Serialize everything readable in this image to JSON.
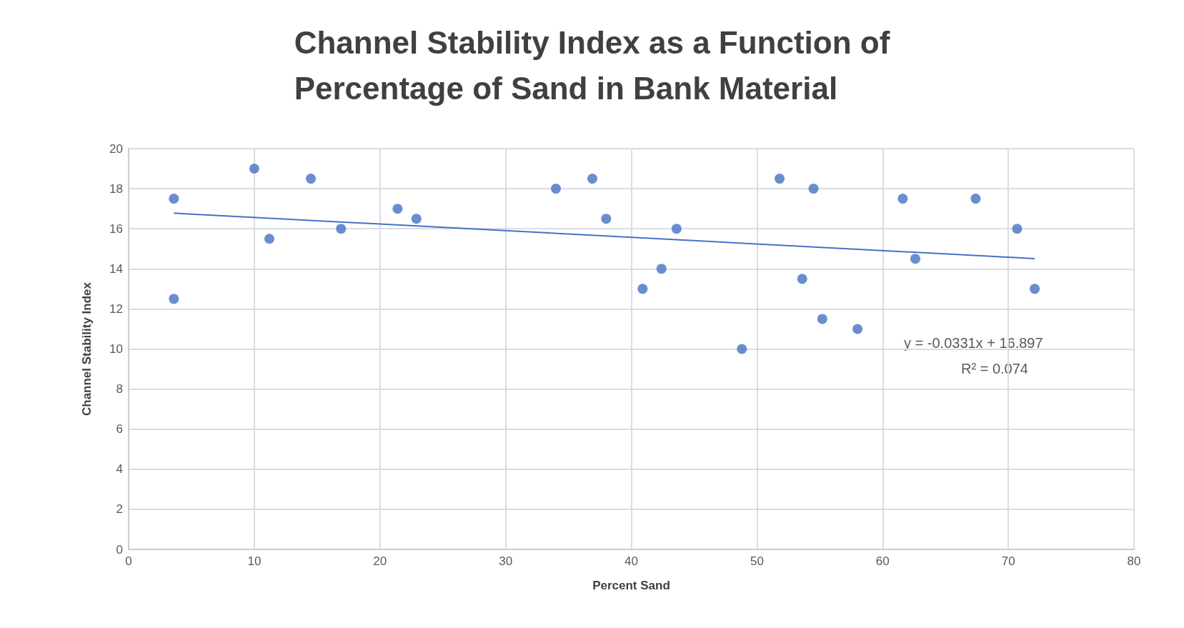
{
  "chart_data": {
    "type": "scatter",
    "title": "Channel Stability Index as a Function of\nPercentage of Sand in Bank Material",
    "xlabel": "Percent Sand",
    "ylabel": "Channel Stability Index",
    "xlim": [
      0,
      80
    ],
    "xticks": [
      0,
      10,
      20,
      30,
      40,
      50,
      60,
      70,
      80
    ],
    "ylim": [
      0,
      20
    ],
    "yticks": [
      0,
      2,
      4,
      6,
      8,
      10,
      12,
      14,
      16,
      18,
      20
    ],
    "grid": true,
    "marker": "circle",
    "annotations": [
      "y = -0.0331x + 16.897",
      "R² = 0.074"
    ],
    "series": [
      {
        "color": "#4472c4",
        "x": [
          3.6,
          3.6,
          10,
          11.2,
          14.5,
          16.9,
          21.4,
          22.9,
          34,
          36.9,
          38,
          40.9,
          42.4,
          43.6,
          48.8,
          51.8,
          53.6,
          54.5,
          55.2,
          58,
          61.6,
          62.6,
          67.4,
          70.7,
          72.1
        ],
        "values": [
          17.5,
          12.5,
          19,
          15.5,
          18.5,
          16,
          17,
          16.5,
          18,
          18.5,
          16.5,
          13,
          14,
          16,
          10,
          18.5,
          13.5,
          18,
          11.5,
          11,
          17.5,
          14.5,
          17.5,
          16,
          13
        ]
      },
      {
        "type": "line",
        "color": "#4472c4",
        "marker": "none",
        "x": [
          3.6,
          72.1
        ],
        "values": [
          16.78,
          14.51
        ]
      }
    ]
  }
}
